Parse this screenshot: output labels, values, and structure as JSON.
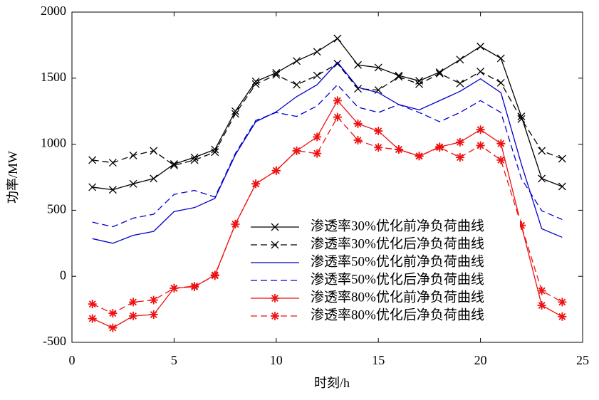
{
  "chart_data": {
    "type": "line",
    "xlabel": "时刻/h",
    "ylabel": "功率/MW",
    "xlim": [
      0,
      25
    ],
    "xticks": [
      0,
      5,
      10,
      15,
      20,
      25
    ],
    "ylim": [
      -500,
      2000
    ],
    "yticks": [
      -500,
      0,
      500,
      1000,
      1500,
      2000
    ],
    "x": [
      1,
      2,
      3,
      4,
      5,
      6,
      7,
      8,
      9,
      10,
      11,
      12,
      13,
      14,
      15,
      16,
      17,
      18,
      19,
      20,
      21,
      22,
      23,
      24
    ],
    "legend": "center",
    "series": [
      {
        "name": "渗透率30%优化前净负荷曲线",
        "color": "#000000",
        "style": "solid",
        "marker": "x",
        "values": [
          675,
          655,
          700,
          740,
          850,
          900,
          960,
          1250,
          1475,
          1540,
          1630,
          1700,
          1800,
          1600,
          1580,
          1520,
          1480,
          1545,
          1640,
          1740,
          1650,
          1210,
          740,
          680
        ]
      },
      {
        "name": "渗透率30%优化后净负荷曲线",
        "color": "#000000",
        "style": "dashed",
        "marker": "x",
        "values": [
          880,
          860,
          915,
          950,
          840,
          880,
          940,
          1230,
          1455,
          1525,
          1450,
          1520,
          1610,
          1420,
          1410,
          1510,
          1455,
          1535,
          1460,
          1550,
          1465,
          1190,
          950,
          890
        ]
      },
      {
        "name": "渗透率50%优化前净负荷曲线",
        "color": "#0000cc",
        "style": "solid",
        "marker": "none",
        "values": [
          285,
          250,
          310,
          340,
          490,
          520,
          590,
          920,
          1170,
          1245,
          1360,
          1450,
          1620,
          1430,
          1390,
          1300,
          1260,
          1330,
          1400,
          1495,
          1390,
          850,
          360,
          295
        ]
      },
      {
        "name": "渗透率50%优化后净负荷曲线",
        "color": "#0000cc",
        "style": "dashed",
        "marker": "none",
        "values": [
          410,
          375,
          440,
          470,
          620,
          650,
          600,
          930,
          1180,
          1240,
          1210,
          1290,
          1450,
          1280,
          1240,
          1300,
          1240,
          1170,
          1240,
          1330,
          1240,
          740,
          496,
          430
        ]
      },
      {
        "name": "渗透率80%优化前净负荷曲线",
        "color": "#ee1111",
        "style": "solid",
        "marker": "star",
        "values": [
          -320,
          -390,
          -300,
          -290,
          -90,
          -80,
          10,
          395,
          700,
          800,
          950,
          1055,
          1330,
          1155,
          1100,
          960,
          910,
          980,
          1015,
          1110,
          1005,
          385,
          -220,
          -305
        ]
      },
      {
        "name": "渗透率80%优化后净负荷曲线",
        "color": "#ee1111",
        "style": "dashed",
        "marker": "star",
        "values": [
          -210,
          -280,
          -195,
          -180,
          -90,
          -75,
          5,
          395,
          700,
          800,
          950,
          930,
          1205,
          1030,
          975,
          960,
          910,
          975,
          900,
          990,
          880,
          385,
          -110,
          -195
        ]
      }
    ]
  }
}
